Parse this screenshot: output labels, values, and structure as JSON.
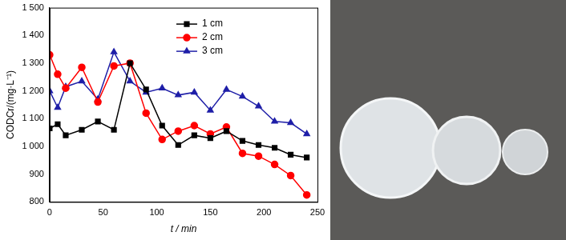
{
  "chart_data": {
    "type": "line",
    "x_label": "t / min",
    "y_label": "CODCr/(mg·L⁻¹)",
    "x": [
      0,
      7.5,
      15,
      30,
      45,
      60,
      75,
      90,
      105,
      120,
      135,
      150,
      165,
      180,
      195,
      210,
      225,
      240
    ],
    "series": [
      {
        "name": "1 cm",
        "color": "#000000",
        "marker": "square",
        "values": [
          1065,
          1080,
          1040,
          1060,
          1090,
          1060,
          1300,
          1205,
          1075,
          1005,
          1040,
          1030,
          1055,
          1020,
          1005,
          995,
          970,
          960
        ]
      },
      {
        "name": "2 cm",
        "color": "#ff0000",
        "marker": "circle",
        "values": [
          1330,
          1260,
          1210,
          1285,
          1160,
          1290,
          1300,
          1120,
          1025,
          1055,
          1075,
          1045,
          1070,
          975,
          965,
          935,
          895,
          825
        ]
      },
      {
        "name": "3 cm",
        "color": "#1f1fa8",
        "marker": "triangle",
        "values": [
          1200,
          1140,
          1215,
          1235,
          1170,
          1340,
          1235,
          1195,
          1210,
          1185,
          1195,
          1130,
          1205,
          1180,
          1145,
          1090,
          1085,
          1045
        ]
      }
    ],
    "xlim": [
      0,
      250
    ],
    "xticks": [
      0,
      50,
      100,
      150,
      200,
      250
    ],
    "ylim": [
      800,
      1500
    ],
    "yticks": [
      800,
      900,
      {
        "value": 1000,
        "label": "1 000"
      },
      {
        "value": 1100,
        "label": "1 100"
      },
      {
        "value": 1200,
        "label": "1 200"
      },
      {
        "value": 1300,
        "label": "1 300"
      },
      {
        "value": 1400,
        "label": "1 400"
      },
      {
        "value": 1500,
        "label": "1 500"
      }
    ],
    "grid": false,
    "legend": "upper center"
  }
}
